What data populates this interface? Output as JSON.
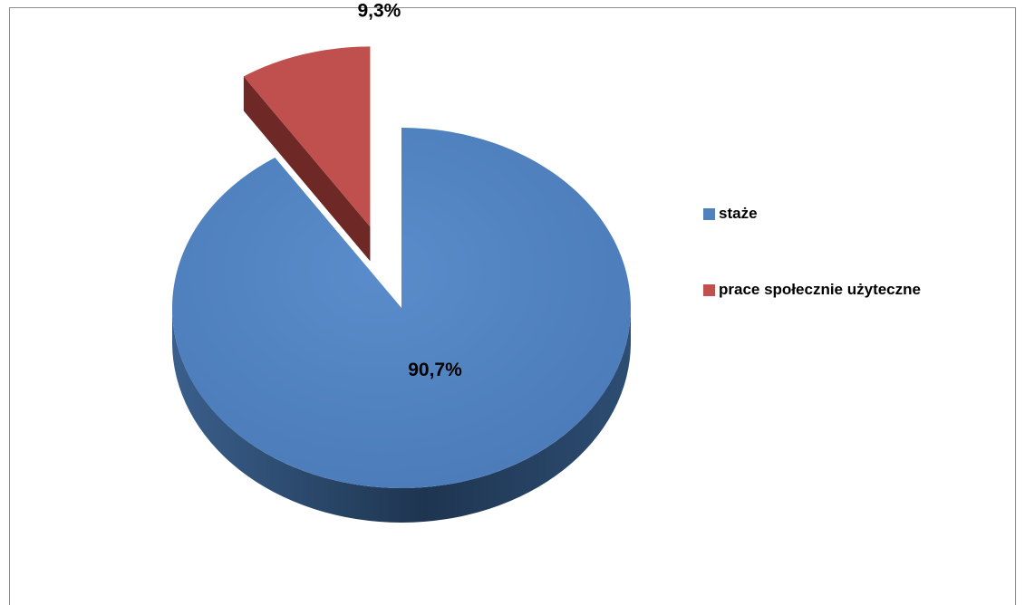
{
  "chart_data": {
    "type": "pie",
    "title": "",
    "slices": [
      {
        "label": "staże",
        "value": 90.7,
        "display": "90,7%",
        "color": "#4f81bd",
        "side_color": "#2d4d73",
        "exploded": false
      },
      {
        "label": "prace społecznie użyteczne",
        "value": 9.3,
        "display": "9,3%",
        "color": "#c0504d",
        "side_color": "#6e2826",
        "exploded": true
      }
    ],
    "style": "3d-exploded",
    "legend_position": "right"
  },
  "legend": {
    "items": [
      {
        "label": "staże",
        "color": "#4f81bd"
      },
      {
        "label": "prace społecznie użyteczne",
        "color": "#c0504d"
      }
    ]
  }
}
